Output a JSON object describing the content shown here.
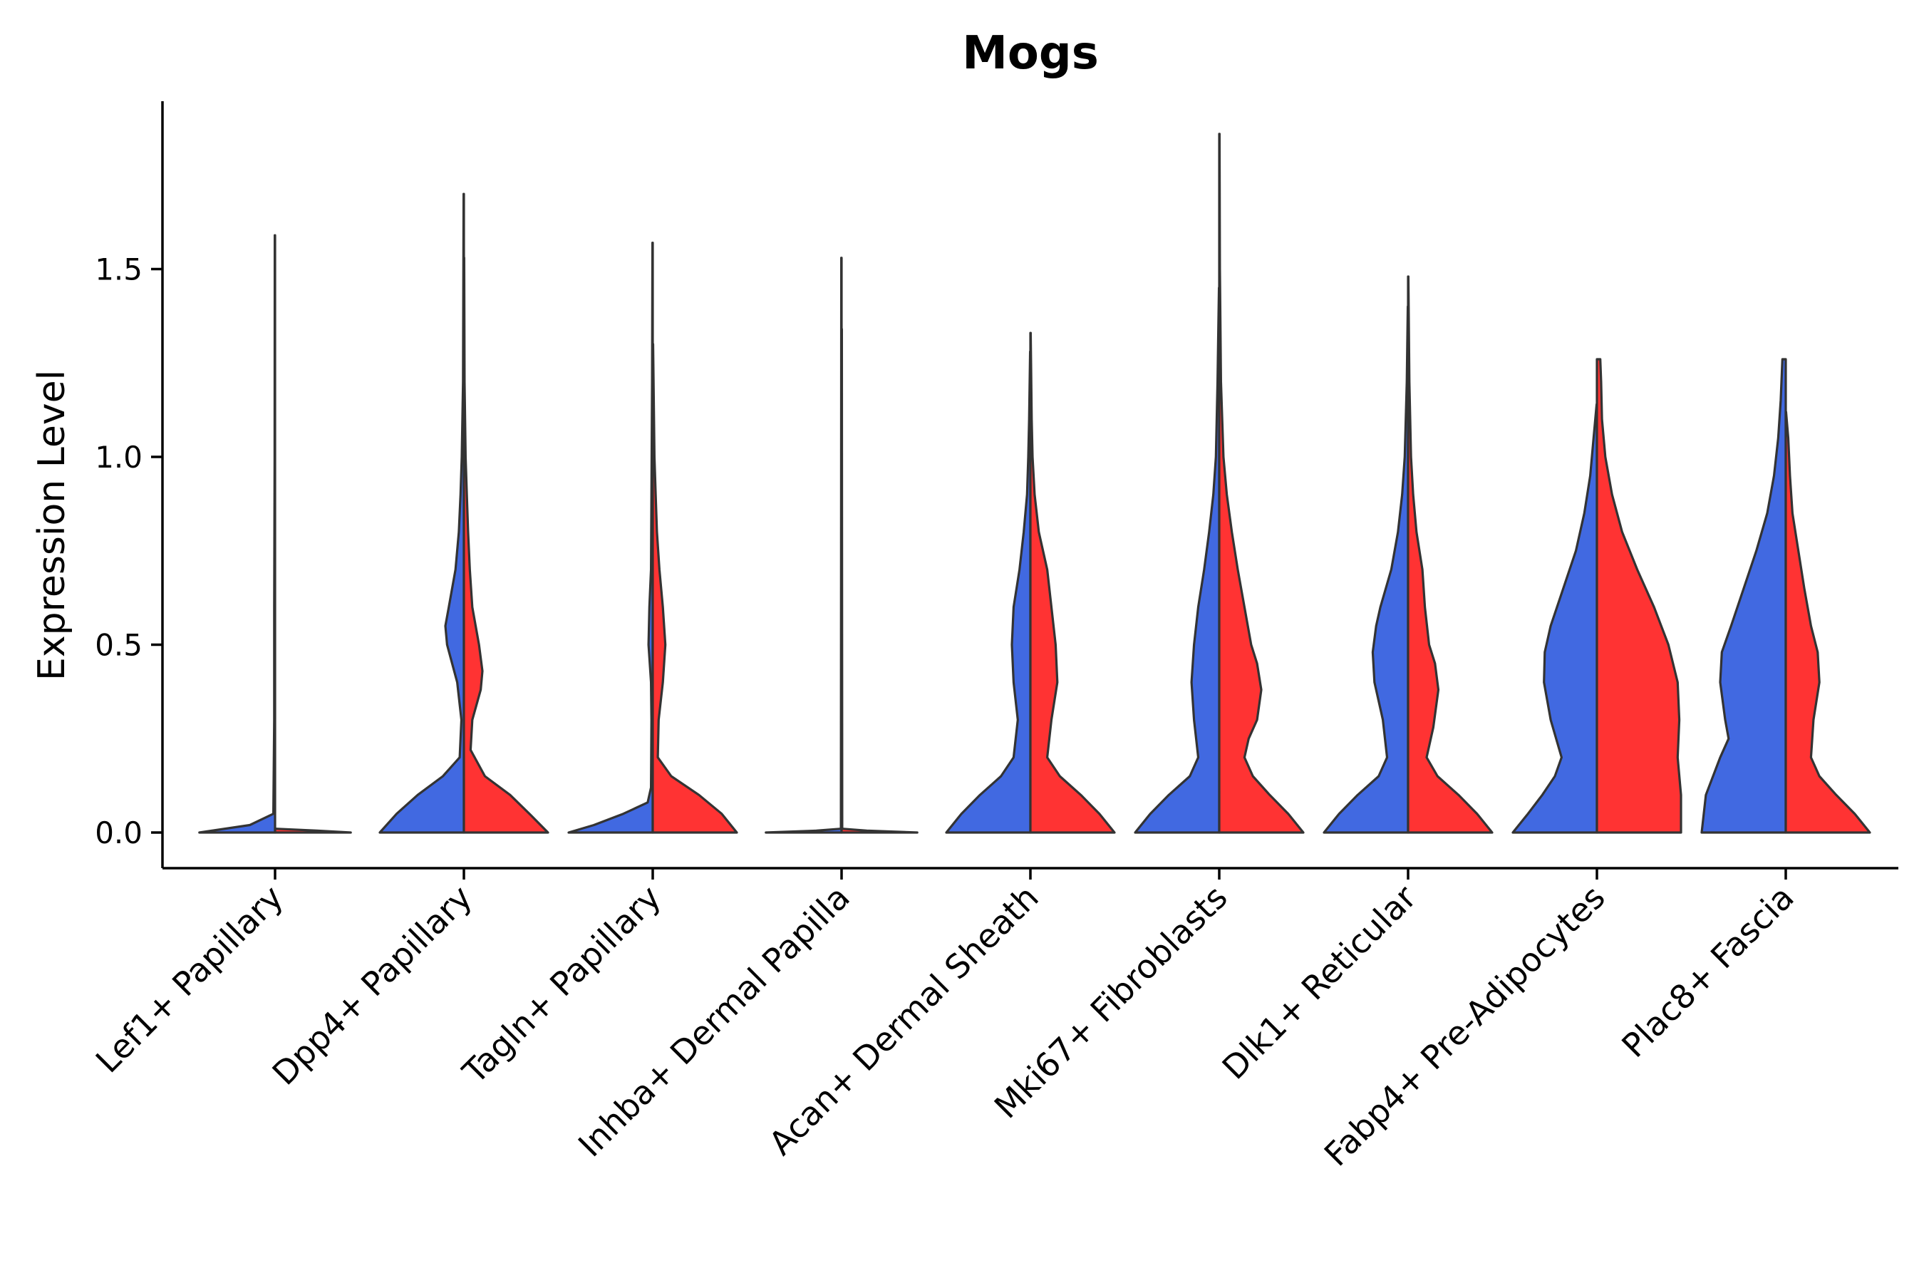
{
  "chart_data": {
    "type": "violin",
    "title": "Mogs",
    "xlabel": "",
    "ylabel": "Expression Level",
    "ylim": [
      -0.095,
      1.95
    ],
    "yticks": [
      0.0,
      0.5,
      1.0,
      1.5
    ],
    "ytick_labels": [
      "0.0",
      "0.5",
      "1.0",
      "1.5"
    ],
    "grid": false,
    "legend": "none",
    "colors": {
      "group_a": "#4169E1",
      "group_b": "#FF3333",
      "outline": "#333333"
    },
    "categories": [
      "Lef1+ Papillary",
      "Dpp4+ Papillary",
      "Tagln+ Papillary",
      "Inhba+ Dermal Papilla",
      "Acan+ Dermal Sheath",
      "Mki67+ Fibroblasts",
      "Dlk1+ Reticular",
      "Fabp4+ Pre-Adipocytes",
      "Plac8+ Fascia"
    ],
    "violins": [
      {
        "category": "Lef1+ Papillary",
        "side": "left",
        "group": "group_a",
        "max": 1.59,
        "profile": [
          [
            0,
            0.9
          ],
          [
            0.02,
            0.3
          ],
          [
            0.05,
            0.02
          ],
          [
            0.3,
            0.01
          ],
          [
            0.6,
            0.01
          ],
          [
            1.0,
            0.005
          ],
          [
            1.59,
            0.003
          ]
        ]
      },
      {
        "category": "Lef1+ Papillary",
        "side": "right",
        "group": "group_b",
        "max": 0.01,
        "profile": [
          [
            0,
            0.9
          ],
          [
            0.005,
            0.5
          ],
          [
            0.01,
            0.01
          ]
        ]
      },
      {
        "category": "Dpp4+ Papillary",
        "side": "left",
        "group": "group_a",
        "max": 1.7,
        "profile": [
          [
            0,
            1.0
          ],
          [
            0.05,
            0.8
          ],
          [
            0.1,
            0.55
          ],
          [
            0.15,
            0.25
          ],
          [
            0.2,
            0.05
          ],
          [
            0.3,
            0.03
          ],
          [
            0.4,
            0.08
          ],
          [
            0.5,
            0.2
          ],
          [
            0.55,
            0.22
          ],
          [
            0.6,
            0.18
          ],
          [
            0.7,
            0.1
          ],
          [
            0.8,
            0.06
          ],
          [
            0.9,
            0.04
          ],
          [
            1.0,
            0.025
          ],
          [
            1.2,
            0.01
          ],
          [
            1.7,
            0.003
          ]
        ]
      },
      {
        "category": "Dpp4+ Papillary",
        "side": "right",
        "group": "group_b",
        "max": 1.53,
        "profile": [
          [
            0,
            1.0
          ],
          [
            0.05,
            0.78
          ],
          [
            0.1,
            0.55
          ],
          [
            0.15,
            0.25
          ],
          [
            0.22,
            0.08
          ],
          [
            0.3,
            0.1
          ],
          [
            0.38,
            0.2
          ],
          [
            0.43,
            0.22
          ],
          [
            0.5,
            0.18
          ],
          [
            0.6,
            0.1
          ],
          [
            0.7,
            0.07
          ],
          [
            0.8,
            0.05
          ],
          [
            0.9,
            0.035
          ],
          [
            1.0,
            0.02
          ],
          [
            1.2,
            0.008
          ],
          [
            1.53,
            0.003
          ]
        ]
      },
      {
        "category": "Tagln+ Papillary",
        "side": "left",
        "group": "group_a",
        "max": 1.57,
        "profile": [
          [
            0,
            1.0
          ],
          [
            0.02,
            0.7
          ],
          [
            0.05,
            0.35
          ],
          [
            0.08,
            0.06
          ],
          [
            0.12,
            0.02
          ],
          [
            0.3,
            0.015
          ],
          [
            0.4,
            0.02
          ],
          [
            0.5,
            0.05
          ],
          [
            0.6,
            0.04
          ],
          [
            0.7,
            0.02
          ],
          [
            0.9,
            0.015
          ],
          [
            1.2,
            0.008
          ],
          [
            1.57,
            0.003
          ]
        ]
      },
      {
        "category": "Tagln+ Papillary",
        "side": "right",
        "group": "group_b",
        "max": 1.3,
        "profile": [
          [
            0,
            1.0
          ],
          [
            0.05,
            0.82
          ],
          [
            0.1,
            0.55
          ],
          [
            0.15,
            0.22
          ],
          [
            0.2,
            0.06
          ],
          [
            0.3,
            0.07
          ],
          [
            0.4,
            0.12
          ],
          [
            0.5,
            0.15
          ],
          [
            0.6,
            0.12
          ],
          [
            0.7,
            0.08
          ],
          [
            0.8,
            0.05
          ],
          [
            0.9,
            0.035
          ],
          [
            1.0,
            0.02
          ],
          [
            1.3,
            0.004
          ]
        ]
      },
      {
        "category": "Inhba+ Dermal Papilla",
        "side": "left",
        "group": "group_a",
        "max": 1.53,
        "profile": [
          [
            0,
            0.9
          ],
          [
            0.005,
            0.3
          ],
          [
            0.01,
            0.008
          ],
          [
            1.53,
            0.003
          ]
        ]
      },
      {
        "category": "Inhba+ Dermal Papilla",
        "side": "right",
        "group": "group_b",
        "max": 1.34,
        "profile": [
          [
            0,
            0.9
          ],
          [
            0.005,
            0.3
          ],
          [
            0.01,
            0.008
          ],
          [
            1.34,
            0.003
          ]
        ]
      },
      {
        "category": "Acan+ Dermal Sheath",
        "side": "left",
        "group": "group_a",
        "max": 1.28,
        "profile": [
          [
            0,
            1.0
          ],
          [
            0.05,
            0.82
          ],
          [
            0.1,
            0.6
          ],
          [
            0.15,
            0.35
          ],
          [
            0.2,
            0.2
          ],
          [
            0.3,
            0.15
          ],
          [
            0.4,
            0.2
          ],
          [
            0.5,
            0.22
          ],
          [
            0.6,
            0.2
          ],
          [
            0.7,
            0.13
          ],
          [
            0.8,
            0.08
          ],
          [
            0.9,
            0.04
          ],
          [
            1.0,
            0.025
          ],
          [
            1.1,
            0.015
          ],
          [
            1.28,
            0.003
          ]
        ]
      },
      {
        "category": "Acan+ Dermal Sheath",
        "side": "right",
        "group": "group_b",
        "max": 1.33,
        "profile": [
          [
            0,
            1.0
          ],
          [
            0.05,
            0.82
          ],
          [
            0.1,
            0.6
          ],
          [
            0.15,
            0.35
          ],
          [
            0.2,
            0.2
          ],
          [
            0.3,
            0.25
          ],
          [
            0.4,
            0.32
          ],
          [
            0.5,
            0.3
          ],
          [
            0.6,
            0.25
          ],
          [
            0.7,
            0.2
          ],
          [
            0.8,
            0.1
          ],
          [
            0.9,
            0.05
          ],
          [
            1.0,
            0.025
          ],
          [
            1.1,
            0.015
          ],
          [
            1.33,
            0.003
          ]
        ]
      },
      {
        "category": "Mki67+ Fibroblasts",
        "side": "left",
        "group": "group_a",
        "max": 1.45,
        "profile": [
          [
            0,
            1.0
          ],
          [
            0.05,
            0.82
          ],
          [
            0.1,
            0.6
          ],
          [
            0.15,
            0.35
          ],
          [
            0.2,
            0.25
          ],
          [
            0.3,
            0.3
          ],
          [
            0.4,
            0.33
          ],
          [
            0.5,
            0.3
          ],
          [
            0.6,
            0.25
          ],
          [
            0.7,
            0.18
          ],
          [
            0.8,
            0.12
          ],
          [
            0.9,
            0.07
          ],
          [
            1.0,
            0.04
          ],
          [
            1.2,
            0.02
          ],
          [
            1.45,
            0.003
          ]
        ]
      },
      {
        "category": "Mki67+ Fibroblasts",
        "side": "right",
        "group": "group_b",
        "max": 1.86,
        "profile": [
          [
            0,
            1.0
          ],
          [
            0.05,
            0.82
          ],
          [
            0.1,
            0.6
          ],
          [
            0.15,
            0.4
          ],
          [
            0.2,
            0.3
          ],
          [
            0.25,
            0.35
          ],
          [
            0.3,
            0.45
          ],
          [
            0.38,
            0.5
          ],
          [
            0.45,
            0.45
          ],
          [
            0.5,
            0.38
          ],
          [
            0.6,
            0.3
          ],
          [
            0.7,
            0.22
          ],
          [
            0.8,
            0.15
          ],
          [
            0.9,
            0.09
          ],
          [
            1.0,
            0.05
          ],
          [
            1.2,
            0.02
          ],
          [
            1.5,
            0.008
          ],
          [
            1.86,
            0.003
          ]
        ]
      },
      {
        "category": "Dlk1+ Reticular",
        "side": "left",
        "group": "group_a",
        "max": 1.4,
        "profile": [
          [
            0,
            1.0
          ],
          [
            0.05,
            0.82
          ],
          [
            0.1,
            0.6
          ],
          [
            0.15,
            0.35
          ],
          [
            0.2,
            0.25
          ],
          [
            0.3,
            0.3
          ],
          [
            0.4,
            0.4
          ],
          [
            0.48,
            0.42
          ],
          [
            0.55,
            0.38
          ],
          [
            0.6,
            0.33
          ],
          [
            0.7,
            0.2
          ],
          [
            0.8,
            0.12
          ],
          [
            0.9,
            0.07
          ],
          [
            1.0,
            0.04
          ],
          [
            1.2,
            0.015
          ],
          [
            1.4,
            0.003
          ]
        ]
      },
      {
        "category": "Dlk1+ Reticular",
        "side": "right",
        "group": "group_b",
        "max": 1.48,
        "profile": [
          [
            0,
            1.0
          ],
          [
            0.05,
            0.82
          ],
          [
            0.1,
            0.6
          ],
          [
            0.15,
            0.35
          ],
          [
            0.2,
            0.22
          ],
          [
            0.28,
            0.3
          ],
          [
            0.38,
            0.36
          ],
          [
            0.45,
            0.32
          ],
          [
            0.5,
            0.25
          ],
          [
            0.6,
            0.2
          ],
          [
            0.7,
            0.17
          ],
          [
            0.8,
            0.1
          ],
          [
            0.9,
            0.06
          ],
          [
            1.0,
            0.035
          ],
          [
            1.2,
            0.015
          ],
          [
            1.48,
            0.003
          ]
        ]
      },
      {
        "category": "Fabp4+ Pre-Adipocytes",
        "side": "left",
        "group": "group_a",
        "max": 1.14,
        "profile": [
          [
            0,
            1.0
          ],
          [
            0.05,
            0.82
          ],
          [
            0.1,
            0.65
          ],
          [
            0.15,
            0.5
          ],
          [
            0.2,
            0.42
          ],
          [
            0.3,
            0.55
          ],
          [
            0.4,
            0.63
          ],
          [
            0.48,
            0.62
          ],
          [
            0.55,
            0.55
          ],
          [
            0.65,
            0.4
          ],
          [
            0.75,
            0.25
          ],
          [
            0.85,
            0.15
          ],
          [
            0.95,
            0.08
          ],
          [
            1.05,
            0.04
          ],
          [
            1.14,
            0.003
          ]
        ]
      },
      {
        "category": "Fabp4+ Pre-Adipocytes",
        "side": "right",
        "group": "group_b",
        "max": 1.26,
        "profile": [
          [
            0,
            1.0
          ],
          [
            0.1,
            1.0
          ],
          [
            0.2,
            0.96
          ],
          [
            0.3,
            0.98
          ],
          [
            0.4,
            0.96
          ],
          [
            0.5,
            0.85
          ],
          [
            0.6,
            0.68
          ],
          [
            0.7,
            0.48
          ],
          [
            0.8,
            0.3
          ],
          [
            0.9,
            0.18
          ],
          [
            1.0,
            0.1
          ],
          [
            1.1,
            0.06
          ],
          [
            1.2,
            0.05
          ],
          [
            1.26,
            0.04
          ]
        ]
      },
      {
        "category": "Plac8+ Fascia",
        "side": "left",
        "group": "group_a",
        "max": 1.26,
        "profile": [
          [
            0,
            1.0
          ],
          [
            0.1,
            0.95
          ],
          [
            0.2,
            0.78
          ],
          [
            0.25,
            0.68
          ],
          [
            0.3,
            0.72
          ],
          [
            0.4,
            0.78
          ],
          [
            0.48,
            0.76
          ],
          [
            0.55,
            0.65
          ],
          [
            0.65,
            0.5
          ],
          [
            0.75,
            0.35
          ],
          [
            0.85,
            0.22
          ],
          [
            0.95,
            0.14
          ],
          [
            1.05,
            0.09
          ],
          [
            1.15,
            0.06
          ],
          [
            1.26,
            0.04
          ]
        ]
      },
      {
        "category": "Plac8+ Fascia",
        "side": "right",
        "group": "group_b",
        "max": 1.12,
        "profile": [
          [
            0,
            1.0
          ],
          [
            0.05,
            0.82
          ],
          [
            0.1,
            0.6
          ],
          [
            0.15,
            0.4
          ],
          [
            0.2,
            0.3
          ],
          [
            0.3,
            0.33
          ],
          [
            0.4,
            0.4
          ],
          [
            0.48,
            0.38
          ],
          [
            0.55,
            0.3
          ],
          [
            0.65,
            0.22
          ],
          [
            0.75,
            0.15
          ],
          [
            0.85,
            0.08
          ],
          [
            0.95,
            0.05
          ],
          [
            1.05,
            0.03
          ],
          [
            1.12,
            0.003
          ]
        ]
      }
    ]
  }
}
